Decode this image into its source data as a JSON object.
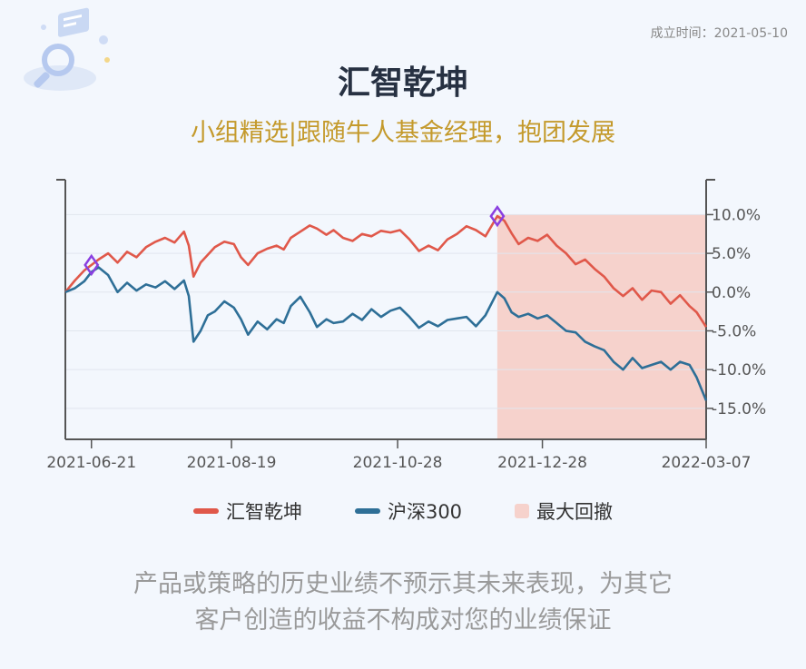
{
  "established": "成立时间：2021-05-10",
  "title": "汇智乾坤",
  "subtitle": "小组精选|跟随牛人基金经理，抱团发展",
  "legend": {
    "fund": "汇智乾坤",
    "benchmark": "沪深300",
    "drawdown": "最大回撤"
  },
  "disclaimer": {
    "line1": "产品或策略的历史业绩不预示其未来表现，为其它",
    "line2": "客户创造的收益不构成对您的业绩保证"
  },
  "colors": {
    "fund": "#e0584a",
    "benchmark": "#2e6f97",
    "drawdown": "#f6d2cc",
    "marker": "#8a3fe0",
    "axis": "#555555",
    "grid": "#e1e6ee"
  },
  "chart_data": {
    "type": "line",
    "x_ticks": [
      "2021-06-21",
      "2021-08-19",
      "2021-10-28",
      "2021-12-28",
      "2022-03-07"
    ],
    "y_ticks": [
      "10.0%",
      "5.0%",
      "0.0%",
      "-5.0%",
      "-10.0%",
      "-15.0%"
    ],
    "ylim": [
      -19,
      14.5
    ],
    "xlim": [
      "2021-06-10",
      "2022-03-07"
    ],
    "grid": true,
    "legend_position": "bottom",
    "max_drawdown_range": [
      "2021-12-09",
      "2022-03-07"
    ],
    "markers": [
      {
        "series": "汇智乾坤",
        "x": "2021-06-21",
        "y": 3.5
      },
      {
        "series": "汇智乾坤",
        "x": "2021-12-09",
        "y": 9.8
      }
    ],
    "series": [
      {
        "name": "汇智乾坤",
        "points": [
          [
            "2021-06-10",
            0.0
          ],
          [
            "2021-06-14",
            1.5
          ],
          [
            "2021-06-18",
            2.8
          ],
          [
            "2021-06-21",
            3.5
          ],
          [
            "2021-06-24",
            4.2
          ],
          [
            "2021-06-28",
            5.0
          ],
          [
            "2021-07-02",
            3.8
          ],
          [
            "2021-07-06",
            5.2
          ],
          [
            "2021-07-10",
            4.5
          ],
          [
            "2021-07-14",
            5.8
          ],
          [
            "2021-07-18",
            6.5
          ],
          [
            "2021-07-22",
            7.0
          ],
          [
            "2021-07-26",
            6.4
          ],
          [
            "2021-07-30",
            7.8
          ],
          [
            "2021-08-01",
            6.0
          ],
          [
            "2021-08-03",
            2.0
          ],
          [
            "2021-08-06",
            3.8
          ],
          [
            "2021-08-09",
            4.8
          ],
          [
            "2021-08-12",
            5.8
          ],
          [
            "2021-08-16",
            6.5
          ],
          [
            "2021-08-20",
            6.2
          ],
          [
            "2021-08-23",
            4.5
          ],
          [
            "2021-08-26",
            3.5
          ],
          [
            "2021-08-30",
            5.0
          ],
          [
            "2021-09-03",
            5.6
          ],
          [
            "2021-09-07",
            6.0
          ],
          [
            "2021-09-10",
            5.5
          ],
          [
            "2021-09-13",
            7.0
          ],
          [
            "2021-09-17",
            7.8
          ],
          [
            "2021-09-21",
            8.6
          ],
          [
            "2021-09-24",
            8.2
          ],
          [
            "2021-09-28",
            7.4
          ],
          [
            "2021-10-01",
            8.0
          ],
          [
            "2021-10-05",
            7.0
          ],
          [
            "2021-10-09",
            6.6
          ],
          [
            "2021-10-13",
            7.5
          ],
          [
            "2021-10-17",
            7.2
          ],
          [
            "2021-10-21",
            7.9
          ],
          [
            "2021-10-25",
            7.7
          ],
          [
            "2021-10-29",
            8.0
          ],
          [
            "2021-11-02",
            6.8
          ],
          [
            "2021-11-06",
            5.3
          ],
          [
            "2021-11-10",
            6.0
          ],
          [
            "2021-11-14",
            5.4
          ],
          [
            "2021-11-18",
            6.8
          ],
          [
            "2021-11-22",
            7.5
          ],
          [
            "2021-11-26",
            8.5
          ],
          [
            "2021-11-30",
            8.0
          ],
          [
            "2021-12-04",
            7.2
          ],
          [
            "2021-12-09",
            9.8
          ],
          [
            "2021-12-12",
            9.2
          ],
          [
            "2021-12-15",
            7.6
          ],
          [
            "2021-12-18",
            6.2
          ],
          [
            "2021-12-22",
            7.0
          ],
          [
            "2021-12-26",
            6.6
          ],
          [
            "2021-12-30",
            7.4
          ],
          [
            "2022-01-03",
            6.0
          ],
          [
            "2022-01-07",
            5.0
          ],
          [
            "2022-01-11",
            3.6
          ],
          [
            "2022-01-15",
            4.2
          ],
          [
            "2022-01-19",
            3.0
          ],
          [
            "2022-01-23",
            2.0
          ],
          [
            "2022-01-27",
            0.5
          ],
          [
            "2022-01-31",
            -0.5
          ],
          [
            "2022-02-04",
            0.5
          ],
          [
            "2022-02-08",
            -1.0
          ],
          [
            "2022-02-12",
            0.2
          ],
          [
            "2022-02-16",
            0.0
          ],
          [
            "2022-02-20",
            -1.5
          ],
          [
            "2022-02-24",
            -0.4
          ],
          [
            "2022-02-28",
            -1.8
          ],
          [
            "2022-03-03",
            -2.6
          ],
          [
            "2022-03-07",
            -4.5
          ]
        ]
      },
      {
        "name": "沪深300",
        "points": [
          [
            "2021-06-10",
            0.0
          ],
          [
            "2021-06-14",
            0.5
          ],
          [
            "2021-06-18",
            1.4
          ],
          [
            "2021-06-21",
            2.6
          ],
          [
            "2021-06-24",
            3.2
          ],
          [
            "2021-06-28",
            2.2
          ],
          [
            "2021-07-02",
            0.0
          ],
          [
            "2021-07-06",
            1.2
          ],
          [
            "2021-07-10",
            0.2
          ],
          [
            "2021-07-14",
            1.0
          ],
          [
            "2021-07-18",
            0.6
          ],
          [
            "2021-07-22",
            1.4
          ],
          [
            "2021-07-26",
            0.4
          ],
          [
            "2021-07-30",
            1.5
          ],
          [
            "2021-08-01",
            -0.5
          ],
          [
            "2021-08-03",
            -6.4
          ],
          [
            "2021-08-06",
            -5.0
          ],
          [
            "2021-08-09",
            -3.0
          ],
          [
            "2021-08-12",
            -2.5
          ],
          [
            "2021-08-16",
            -1.2
          ],
          [
            "2021-08-20",
            -2.0
          ],
          [
            "2021-08-23",
            -3.5
          ],
          [
            "2021-08-26",
            -5.5
          ],
          [
            "2021-08-30",
            -3.8
          ],
          [
            "2021-09-03",
            -4.8
          ],
          [
            "2021-09-07",
            -3.5
          ],
          [
            "2021-09-10",
            -4.0
          ],
          [
            "2021-09-13",
            -1.8
          ],
          [
            "2021-09-17",
            -0.6
          ],
          [
            "2021-09-21",
            -2.6
          ],
          [
            "2021-09-24",
            -4.5
          ],
          [
            "2021-09-28",
            -3.5
          ],
          [
            "2021-10-01",
            -4.0
          ],
          [
            "2021-10-05",
            -3.8
          ],
          [
            "2021-10-09",
            -2.8
          ],
          [
            "2021-10-13",
            -3.6
          ],
          [
            "2021-10-17",
            -2.2
          ],
          [
            "2021-10-21",
            -3.2
          ],
          [
            "2021-10-25",
            -2.4
          ],
          [
            "2021-10-29",
            -2.0
          ],
          [
            "2021-11-02",
            -3.2
          ],
          [
            "2021-11-06",
            -4.6
          ],
          [
            "2021-11-10",
            -3.8
          ],
          [
            "2021-11-14",
            -4.4
          ],
          [
            "2021-11-18",
            -3.6
          ],
          [
            "2021-11-22",
            -3.4
          ],
          [
            "2021-11-26",
            -3.2
          ],
          [
            "2021-11-30",
            -4.4
          ],
          [
            "2021-12-04",
            -3.0
          ],
          [
            "2021-12-09",
            0.0
          ],
          [
            "2021-12-12",
            -0.8
          ],
          [
            "2021-12-15",
            -2.6
          ],
          [
            "2021-12-18",
            -3.2
          ],
          [
            "2021-12-22",
            -2.8
          ],
          [
            "2021-12-26",
            -3.4
          ],
          [
            "2021-12-30",
            -3.0
          ],
          [
            "2022-01-03",
            -4.0
          ],
          [
            "2022-01-07",
            -5.0
          ],
          [
            "2022-01-11",
            -5.2
          ],
          [
            "2022-01-15",
            -6.4
          ],
          [
            "2022-01-19",
            -7.0
          ],
          [
            "2022-01-23",
            -7.5
          ],
          [
            "2022-01-27",
            -9.0
          ],
          [
            "2022-01-31",
            -10.0
          ],
          [
            "2022-02-04",
            -8.5
          ],
          [
            "2022-02-08",
            -9.8
          ],
          [
            "2022-02-12",
            -9.4
          ],
          [
            "2022-02-16",
            -9.0
          ],
          [
            "2022-02-20",
            -10.0
          ],
          [
            "2022-02-24",
            -9.0
          ],
          [
            "2022-02-28",
            -9.4
          ],
          [
            "2022-03-03",
            -11.0
          ],
          [
            "2022-03-07",
            -14.0
          ]
        ]
      }
    ]
  }
}
